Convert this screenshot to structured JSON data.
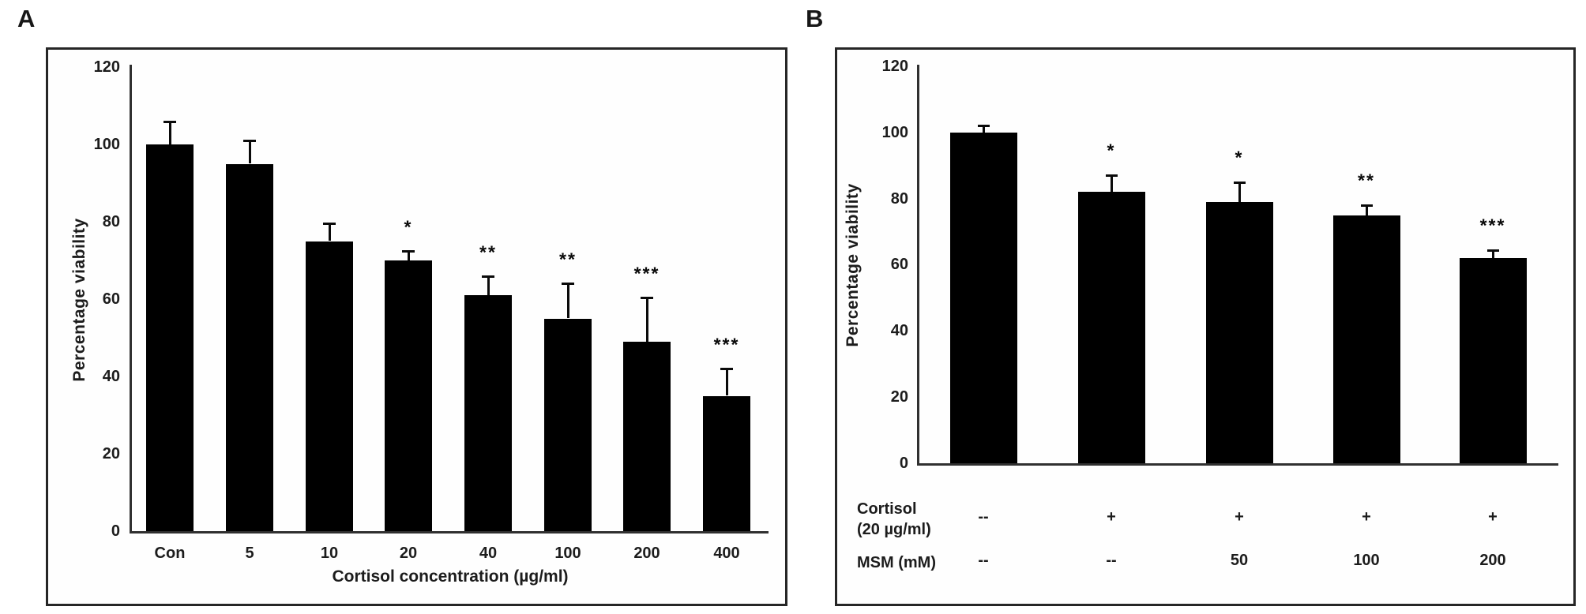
{
  "panels": [
    {
      "label": "A"
    },
    {
      "label": "B"
    }
  ],
  "chart_data": [
    {
      "type": "bar",
      "title": "",
      "xlabel": "Cortisol concentration (µg/ml)",
      "ylabel": "Percentage viability",
      "ylim": [
        0,
        120
      ],
      "yticks": [
        0,
        20,
        40,
        60,
        80,
        100,
        120
      ],
      "grid": false,
      "legend": "none",
      "bar_color": "#000000",
      "categories": [
        "Con",
        "5",
        "10",
        "20",
        "40",
        "100",
        "200",
        "400"
      ],
      "values": [
        100,
        95,
        75,
        70,
        61,
        55,
        49,
        35
      ],
      "errors_upper": [
        6,
        6,
        4.5,
        2.5,
        5,
        9,
        11.5,
        7
      ],
      "significance": [
        "",
        "",
        "",
        "*",
        "**",
        "**",
        "***",
        "***"
      ]
    },
    {
      "type": "bar",
      "title": "",
      "xlabel": "",
      "ylabel": "Percentage viability",
      "ylim": [
        0,
        120
      ],
      "yticks": [
        0,
        20,
        40,
        60,
        80,
        100,
        120
      ],
      "grid": false,
      "legend": "none",
      "bar_color": "#000000",
      "categories": [
        "",
        "",
        "",
        "",
        ""
      ],
      "values": [
        100,
        82,
        79,
        75,
        62
      ],
      "errors_upper": [
        2,
        5,
        6,
        3,
        2.5
      ],
      "significance": [
        "",
        "*",
        "*",
        "**",
        "***"
      ],
      "table": {
        "rows": [
          {
            "label": [
              "Cortisol",
              "(20 µg/ml)"
            ],
            "values": [
              "--",
              "+",
              "+",
              "+",
              "+"
            ]
          },
          {
            "label": [
              "MSM (mM)"
            ],
            "values": [
              "--",
              "--",
              "50",
              "100",
              "200"
            ]
          }
        ]
      }
    }
  ],
  "colors": {
    "bar": "#000000",
    "axis": "#303030",
    "frame": "#262626",
    "text": "#1c1c1c",
    "background": "#ffffff"
  }
}
